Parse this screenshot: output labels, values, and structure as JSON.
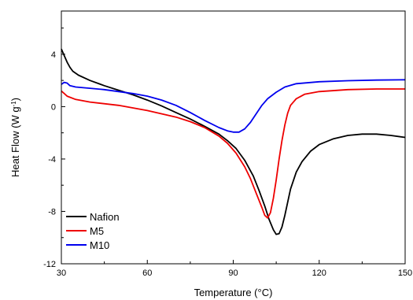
{
  "chart_data": {
    "type": "line",
    "xlabel": "Temperature (°C)",
    "ylabel_main": "Heat Flow (W g",
    "ylabel_sup": "-1",
    "ylabel_end": ")",
    "xlim": [
      30,
      150
    ],
    "ylim": [
      -12,
      7.3
    ],
    "xticks": [
      30,
      60,
      90,
      120,
      150
    ],
    "yticks": [
      -12,
      -8,
      -4,
      0,
      4
    ],
    "grid": false,
    "legend_position": "bottom-left",
    "series": [
      {
        "name": "Nafion",
        "color": "#000000",
        "points": [
          [
            30,
            4.4
          ],
          [
            31,
            3.9
          ],
          [
            32,
            3.4
          ],
          [
            33,
            3.0
          ],
          [
            34,
            2.7
          ],
          [
            36,
            2.4
          ],
          [
            40,
            2.0
          ],
          [
            45,
            1.6
          ],
          [
            50,
            1.25
          ],
          [
            55,
            0.9
          ],
          [
            60,
            0.5
          ],
          [
            65,
            0.05
          ],
          [
            70,
            -0.45
          ],
          [
            75,
            -0.95
          ],
          [
            80,
            -1.5
          ],
          [
            85,
            -2.1
          ],
          [
            88,
            -2.6
          ],
          [
            91,
            -3.2
          ],
          [
            94,
            -4.1
          ],
          [
            97,
            -5.3
          ],
          [
            99,
            -6.4
          ],
          [
            101,
            -7.6
          ],
          [
            102.5,
            -8.6
          ],
          [
            104,
            -9.4
          ],
          [
            105,
            -9.75
          ],
          [
            106,
            -9.7
          ],
          [
            107,
            -9.2
          ],
          [
            108,
            -8.3
          ],
          [
            109,
            -7.3
          ],
          [
            110,
            -6.3
          ],
          [
            112,
            -5.0
          ],
          [
            114,
            -4.2
          ],
          [
            117,
            -3.4
          ],
          [
            120,
            -2.9
          ],
          [
            125,
            -2.45
          ],
          [
            130,
            -2.2
          ],
          [
            135,
            -2.1
          ],
          [
            140,
            -2.1
          ],
          [
            145,
            -2.2
          ],
          [
            150,
            -2.35
          ]
        ]
      },
      {
        "name": "M5",
        "color": "#ee0000",
        "points": [
          [
            30,
            1.2
          ],
          [
            32,
            0.8
          ],
          [
            35,
            0.55
          ],
          [
            40,
            0.35
          ],
          [
            50,
            0.1
          ],
          [
            60,
            -0.3
          ],
          [
            70,
            -0.8
          ],
          [
            75,
            -1.15
          ],
          [
            80,
            -1.6
          ],
          [
            85,
            -2.25
          ],
          [
            88,
            -2.8
          ],
          [
            91,
            -3.55
          ],
          [
            94,
            -4.6
          ],
          [
            96,
            -5.5
          ],
          [
            98,
            -6.6
          ],
          [
            100,
            -7.7
          ],
          [
            101,
            -8.3
          ],
          [
            102,
            -8.5
          ],
          [
            103,
            -8.1
          ],
          [
            104,
            -7.0
          ],
          [
            105,
            -5.6
          ],
          [
            106,
            -4.0
          ],
          [
            107,
            -2.6
          ],
          [
            108,
            -1.4
          ],
          [
            109,
            -0.5
          ],
          [
            110,
            0.1
          ],
          [
            112,
            0.6
          ],
          [
            115,
            0.95
          ],
          [
            120,
            1.15
          ],
          [
            130,
            1.3
          ],
          [
            140,
            1.35
          ],
          [
            150,
            1.35
          ]
        ]
      },
      {
        "name": "M10",
        "color": "#0000ee",
        "points": [
          [
            30,
            1.7
          ],
          [
            31,
            1.85
          ],
          [
            32,
            1.8
          ],
          [
            33,
            1.6
          ],
          [
            35,
            1.5
          ],
          [
            40,
            1.4
          ],
          [
            45,
            1.3
          ],
          [
            50,
            1.15
          ],
          [
            55,
            1.0
          ],
          [
            60,
            0.8
          ],
          [
            65,
            0.5
          ],
          [
            70,
            0.1
          ],
          [
            75,
            -0.45
          ],
          [
            80,
            -1.05
          ],
          [
            85,
            -1.6
          ],
          [
            88,
            -1.85
          ],
          [
            90,
            -1.95
          ],
          [
            92,
            -1.95
          ],
          [
            94,
            -1.7
          ],
          [
            96,
            -1.2
          ],
          [
            98,
            -0.55
          ],
          [
            100,
            0.1
          ],
          [
            102,
            0.6
          ],
          [
            105,
            1.1
          ],
          [
            108,
            1.5
          ],
          [
            112,
            1.75
          ],
          [
            120,
            1.9
          ],
          [
            130,
            1.98
          ],
          [
            140,
            2.03
          ],
          [
            150,
            2.05
          ]
        ]
      }
    ]
  }
}
